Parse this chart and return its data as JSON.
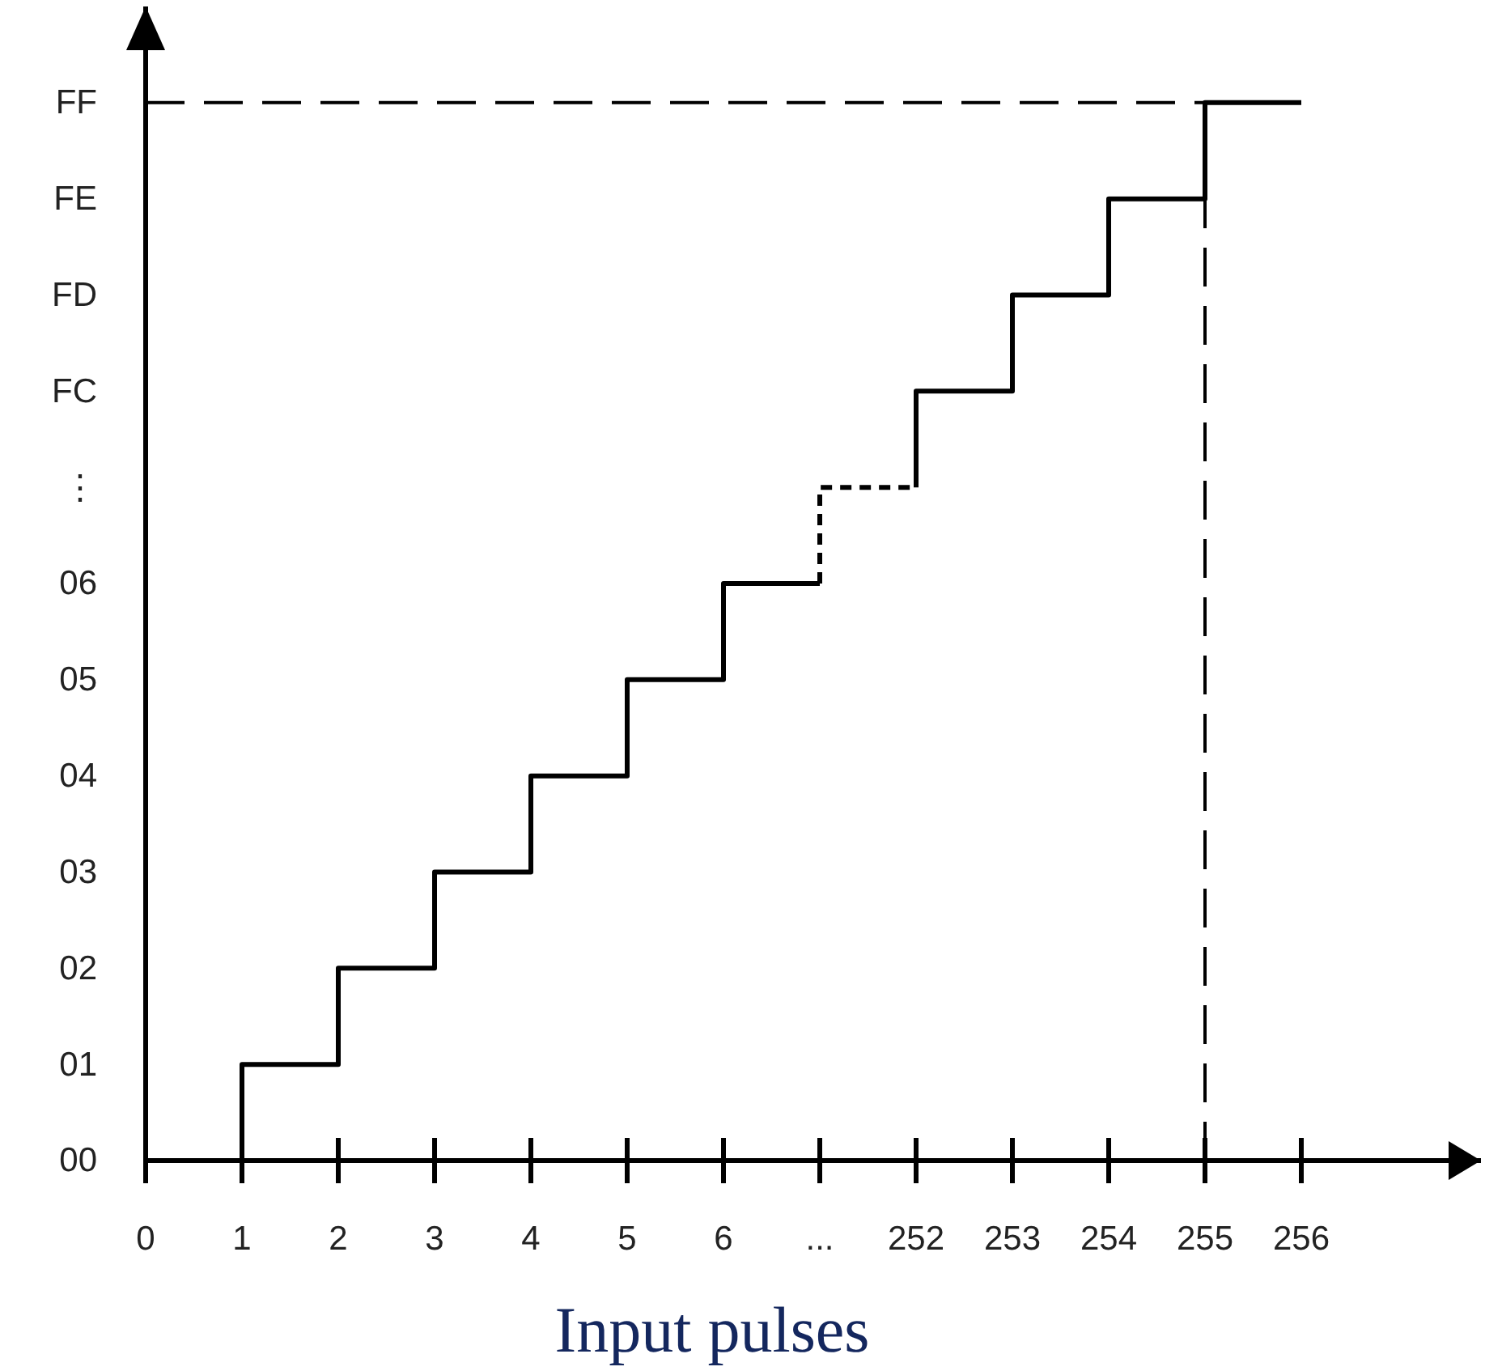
{
  "chart_data": {
    "type": "step",
    "xlabel": "Input pulses",
    "categories": [
      "0",
      "1",
      "2",
      "3",
      "4",
      "5",
      "6",
      "...",
      "252",
      "253",
      "254",
      "255",
      "256"
    ],
    "ylim": [
      0,
      12
    ],
    "yticks": [
      {
        "value": 0,
        "label": "00"
      },
      {
        "value": 1,
        "label": "01"
      },
      {
        "value": 2,
        "label": "02"
      },
      {
        "value": 3,
        "label": "03"
      },
      {
        "value": 4,
        "label": "04"
      },
      {
        "value": 5,
        "label": "05"
      },
      {
        "value": 6,
        "label": "06"
      },
      {
        "value": 7,
        "label": "⋮"
      },
      {
        "value": 8,
        "label": "FC"
      },
      {
        "value": 9,
        "label": "FD"
      },
      {
        "value": 10,
        "label": "FE"
      },
      {
        "value": 11,
        "label": "FF"
      }
    ],
    "series": [
      {
        "color": "#000000",
        "line_style": "solid",
        "x": [
          "0",
          "1",
          "2",
          "3",
          "4",
          "5",
          "6",
          "..."
        ],
        "values": [
          0,
          1,
          2,
          3,
          4,
          5,
          6,
          6
        ]
      },
      {
        "color": "#000000",
        "line_style": "dashed",
        "x": [
          "...",
          "...",
          "252"
        ],
        "values": [
          6,
          7,
          7
        ]
      },
      {
        "color": "#000000",
        "line_style": "solid",
        "x": [
          "252",
          "252",
          "253",
          "254",
          "255",
          "256"
        ],
        "values": [
          7,
          8,
          9,
          10,
          11,
          11
        ]
      }
    ],
    "ref_lines": [
      {
        "axis": "y",
        "value": 11,
        "line_style": "dashed",
        "color": "#000000"
      },
      {
        "axis": "x",
        "value": "255",
        "line_style": "dashed",
        "color": "#000000"
      }
    ],
    "marker": "none",
    "grid": false
  }
}
